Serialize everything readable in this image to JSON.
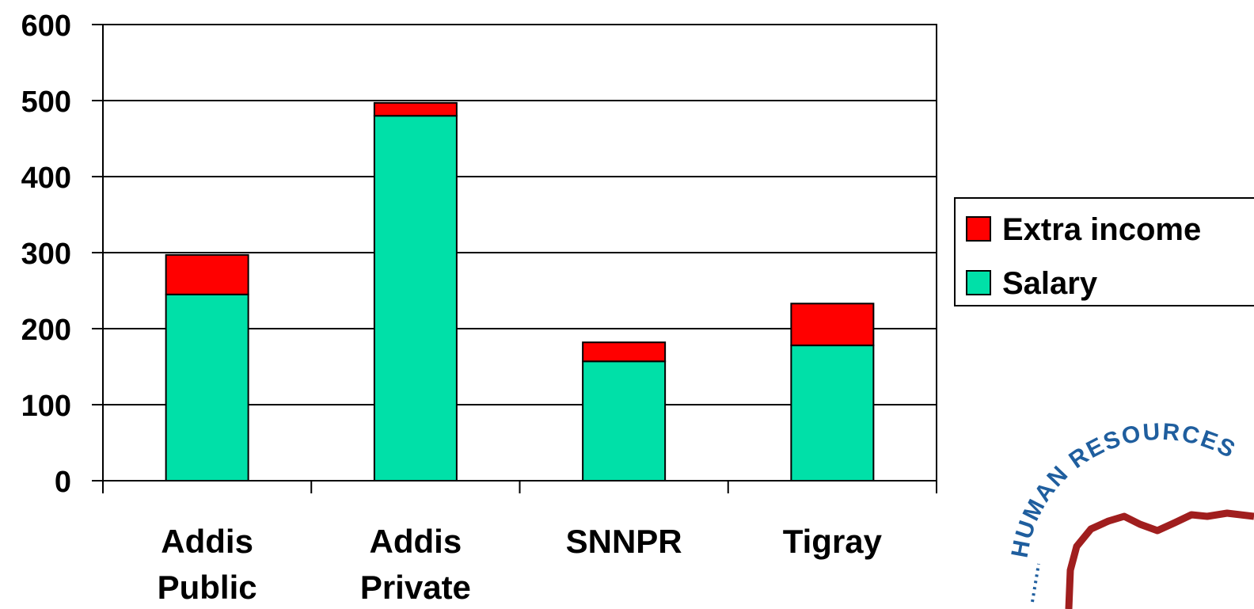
{
  "chart_data": {
    "type": "bar",
    "stacked": true,
    "categories": [
      [
        "Addis",
        "Public"
      ],
      [
        "Addis",
        "Private"
      ],
      [
        "SNNPR"
      ],
      [
        "Tigray"
      ]
    ],
    "series": [
      {
        "name": "Salary",
        "values": [
          245,
          480,
          157,
          178
        ],
        "color": "#00e0a8"
      },
      {
        "name": "Extra income",
        "values": [
          52,
          17,
          25,
          55
        ],
        "color": "#ff0000"
      }
    ],
    "ylim": [
      0,
      600
    ],
    "yticks": [
      0,
      100,
      200,
      300,
      400,
      500,
      600
    ],
    "grid": true,
    "legend_position": "right",
    "legend_order": [
      "Extra income",
      "Salary"
    ]
  },
  "logo": {
    "text": "HUMAN RESOURCES",
    "icon": "africa-map-seal-icon"
  }
}
